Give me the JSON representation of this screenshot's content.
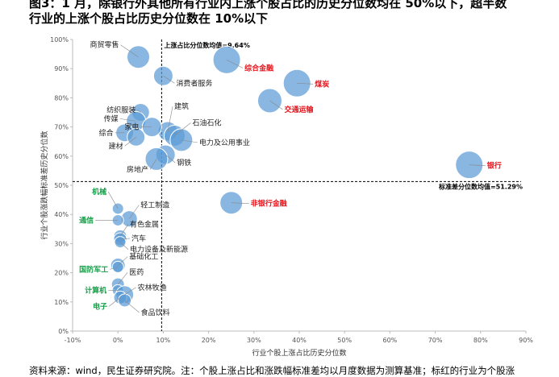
{
  "title": {
    "line1": "图3：1 月，除银行外其他所有行业内上涨个股占比的历史分位数均在 50%以下，超半数",
    "line2": "行业的上涨个股占比历史分位数在 10%以下"
  },
  "source": "资料来源：wind，民生证券研究院。注：个股上涨占比和涨跌幅标准差均以月度数据为测算基准；标红的行业为个股涨",
  "chart_data": {
    "type": "scatter",
    "xlabel": "行业个股上涨占比历史分位数",
    "ylabel": "行业个股涨跌幅标准差历史分位数",
    "xlim": [
      -10,
      90
    ],
    "ylim": [
      0,
      100
    ],
    "xticks": [
      "-10%",
      "0%",
      "10%",
      "20%",
      "30%",
      "40%",
      "50%",
      "60%",
      "70%",
      "80%",
      "90%"
    ],
    "yticks": [
      "0%",
      "10%",
      "20%",
      "30%",
      "40%",
      "50%",
      "60%",
      "70%",
      "80%",
      "90%",
      "100%"
    ],
    "grid": false,
    "colors": {
      "bubble": "#5b9bd5",
      "red": "#e8141c",
      "green": "#19a04b",
      "ref_line": "#000000"
    },
    "ref_lines": {
      "x": 9.64,
      "x_label": "上涨占比分位数均值=9.64%",
      "y": 51.29,
      "y_label": "标准差分位数均值=51.29%"
    },
    "points": [
      {
        "name": "商贸零售",
        "x": 4.5,
        "y": 94,
        "size": 14,
        "color": "black"
      },
      {
        "name": "综合金融",
        "x": 24,
        "y": 93,
        "size": 17,
        "color": "red"
      },
      {
        "name": "消费者服务",
        "x": 10,
        "y": 87.5,
        "size": 12,
        "color": "black"
      },
      {
        "name": "煤炭",
        "x": 39.5,
        "y": 85,
        "size": 17,
        "color": "red"
      },
      {
        "name": "交通运输",
        "x": 33.5,
        "y": 79,
        "size": 15,
        "color": "red"
      },
      {
        "name": "纺织服装",
        "x": 5,
        "y": 75,
        "size": 11,
        "color": "black"
      },
      {
        "name": "建筑",
        "x": 11,
        "y": 68.5,
        "size": 12,
        "color": "black"
      },
      {
        "name": "传媒",
        "x": 4,
        "y": 72,
        "size": 12,
        "color": "black"
      },
      {
        "name": "家电",
        "x": 7.5,
        "y": 70,
        "size": 12,
        "color": "black"
      },
      {
        "name": "石油石化",
        "x": 12.5,
        "y": 67,
        "size": 13,
        "color": "black"
      },
      {
        "name": "综合",
        "x": 1.5,
        "y": 68,
        "size": 11,
        "color": "black"
      },
      {
        "name": "电力及公用事业",
        "x": 14,
        "y": 65.5,
        "size": 14,
        "color": "black"
      },
      {
        "name": "建材",
        "x": 4,
        "y": 66.5,
        "size": 11,
        "color": "black"
      },
      {
        "name": "钢铁",
        "x": 10.5,
        "y": 60.5,
        "size": 12,
        "color": "black"
      },
      {
        "name": "房地产",
        "x": 8.5,
        "y": 59,
        "size": 14,
        "color": "black"
      },
      {
        "name": "银行",
        "x": 77.5,
        "y": 57,
        "size": 17,
        "color": "red"
      },
      {
        "name": "非银行金融",
        "x": 25,
        "y": 44,
        "size": 14,
        "color": "red"
      },
      {
        "name": "机械",
        "x": 0,
        "y": 42,
        "size": 7,
        "color": "green"
      },
      {
        "name": "轻工制造",
        "x": 2.5,
        "y": 38.5,
        "size": 10,
        "color": "black"
      },
      {
        "name": "通信",
        "x": 0,
        "y": 38,
        "size": 7,
        "color": "green"
      },
      {
        "name": "有色金属",
        "x": 0.5,
        "y": 32.5,
        "size": 8,
        "color": "black"
      },
      {
        "name": "汽车",
        "x": 0.5,
        "y": 31.5,
        "size": 8,
        "color": "black"
      },
      {
        "name": "电力设备及新能源",
        "x": 0.5,
        "y": 30.5,
        "size": 7,
        "color": "black"
      },
      {
        "name": "基础化工",
        "x": 0,
        "y": 22.5,
        "size": 9,
        "color": "black"
      },
      {
        "name": "国防军工",
        "x": 0,
        "y": 22,
        "size": 7,
        "color": "green"
      },
      {
        "name": "医药",
        "x": 0,
        "y": 16,
        "size": 8,
        "color": "black"
      },
      {
        "name": "计算机",
        "x": 0,
        "y": 14,
        "size": 7,
        "color": "green"
      },
      {
        "name": "农林牧渔",
        "x": 1.5,
        "y": 12.5,
        "size": 11,
        "color": "black"
      },
      {
        "name": "电子",
        "x": 0.5,
        "y": 11.5,
        "size": 8,
        "color": "green"
      },
      {
        "name": "食品饮料",
        "x": 1.5,
        "y": 10.5,
        "size": 8,
        "color": "black"
      }
    ]
  }
}
